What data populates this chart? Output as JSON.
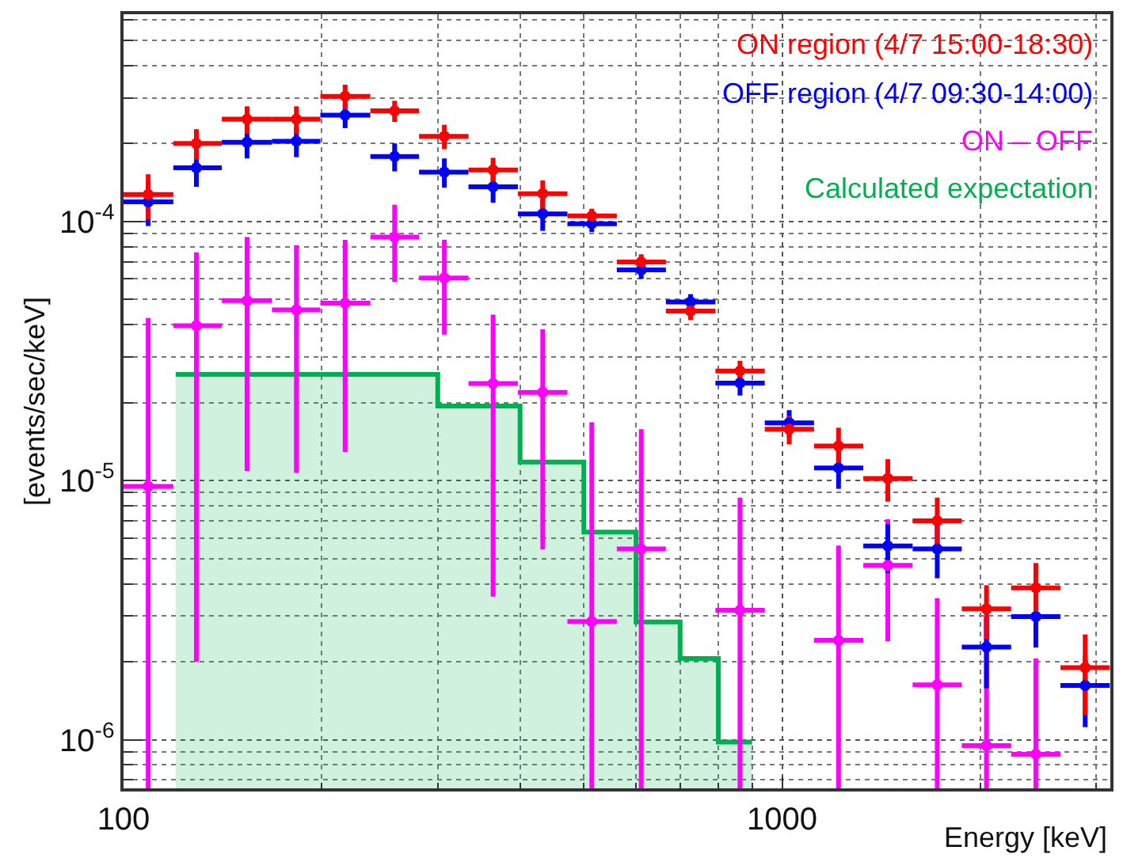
{
  "chart_data": {
    "type": "scatter",
    "xlabel": "Energy [keV]",
    "ylabel": "[events/sec/keV]",
    "log": "xy",
    "grid": true,
    "legend": "top right",
    "xlim": [
      100,
      3150
    ],
    "ylim": [
      6.5e-07,
      0.00063
    ],
    "xticks": [
      100,
      1000
    ],
    "yticks": [
      {
        "value": 1e-06,
        "label": "10$^{-6}$"
      },
      {
        "value": 1e-05,
        "label": "10$^{-5}$"
      },
      {
        "value": 0.0001,
        "label": "10$^{-4}$"
      }
    ],
    "series": [
      {
        "name": "ON region (4/7 15:00-18:30)",
        "color": "#ff0000",
        "x": [
          109,
          129,
          154,
          183,
          217,
          258,
          307,
          364,
          433,
          514,
          611,
          726,
          863,
          1025,
          1218,
          1447,
          1720,
          2043,
          2428,
          2885
        ],
        "values": [
          0.000127,
          0.0002,
          0.000248,
          0.000248,
          0.000304,
          0.000267,
          0.000213,
          0.000158,
          0.000128,
          0.000105,
          6.97e-05,
          4.51e-05,
          2.65e-05,
          1.58e-05,
          1.36e-05,
          1.02e-05,
          7e-06,
          3.2e-06,
          3.86e-06,
          1.9e-06
        ],
        "errors": [
          2.5e-05,
          2.7e-05,
          3e-05,
          3e-05,
          3.3e-05,
          2.5e-05,
          2.3e-05,
          1.8e-05,
          1.6e-05,
          7e-06,
          5e-06,
          3.5e-06,
          2.5e-06,
          2e-06,
          2.4e-06,
          1.9e-06,
          1.6e-06,
          7.5e-07,
          9.5e-07,
          6.5e-07
        ],
        "xerrors": [
          [
            100,
            119
          ],
          [
            119,
            141
          ],
          [
            141,
            168
          ],
          [
            168,
            199
          ],
          [
            199,
            237
          ],
          [
            237,
            281
          ],
          [
            281,
            334
          ],
          [
            334,
            397
          ],
          [
            397,
            472
          ],
          [
            472,
            561
          ],
          [
            561,
            666
          ],
          [
            666,
            792
          ],
          [
            792,
            941
          ],
          [
            941,
            1118
          ],
          [
            1118,
            1328
          ],
          [
            1328,
            1578
          ],
          [
            1578,
            1874
          ],
          [
            1874,
            2227
          ],
          [
            2227,
            2646
          ],
          [
            2646,
            3144
          ]
        ]
      },
      {
        "name": "OFF region (4/7 09:30-14:00)",
        "color": "#0000ff",
        "x": [
          109,
          129,
          154,
          183,
          217,
          258,
          307,
          364,
          433,
          514,
          611,
          726,
          863,
          1025,
          1218,
          1447,
          1720,
          2043,
          2428,
          2885
        ],
        "values": [
          0.000119,
          0.000161,
          0.000202,
          0.000204,
          0.000257,
          0.000178,
          0.000155,
          0.000136,
          0.000107,
          9.8e-05,
          6.5e-05,
          4.89e-05,
          2.38e-05,
          1.67e-05,
          1.12e-05,
          5.6e-06,
          5.45e-06,
          2.28e-06,
          2.99e-06,
          1.62e-06
        ],
        "errors": [
          2.3e-05,
          2.5e-05,
          2.7e-05,
          2.7e-05,
          2.8e-05,
          2.2e-05,
          2e-05,
          1.8e-05,
          1.5e-05,
          7e-06,
          5e-06,
          3.5e-06,
          2.5e-06,
          2e-06,
          1.9e-06,
          1.2e-06,
          1.25e-06,
          7e-07,
          7.2e-07,
          5e-07
        ],
        "xerrors": [
          [
            100,
            119
          ],
          [
            119,
            141
          ],
          [
            141,
            168
          ],
          [
            168,
            199
          ],
          [
            199,
            237
          ],
          [
            237,
            281
          ],
          [
            281,
            334
          ],
          [
            334,
            397
          ],
          [
            397,
            472
          ],
          [
            472,
            561
          ],
          [
            561,
            666
          ],
          [
            666,
            792
          ],
          [
            792,
            941
          ],
          [
            941,
            1118
          ],
          [
            1118,
            1328
          ],
          [
            1328,
            1578
          ],
          [
            1578,
            1874
          ],
          [
            1874,
            2227
          ],
          [
            2227,
            2646
          ],
          [
            2646,
            3144
          ]
        ]
      },
      {
        "name": "ON – OFF",
        "color": "#ff00ff",
        "x": [
          109,
          129,
          154,
          183,
          217,
          258,
          307,
          364,
          433,
          514,
          611,
          null,
          863,
          null,
          1218,
          1447,
          1720,
          2043,
          2428,
          null
        ],
        "values": [
          9.5e-06,
          3.96e-05,
          4.95e-05,
          4.56e-05,
          4.84e-05,
          8.7e-05,
          6.05e-05,
          2.37e-05,
          2.19e-05,
          2.86e-06,
          5.45e-06,
          null,
          3.16e-06,
          null,
          2.42e-06,
          4.71e-06,
          1.63e-06,
          9.5e-07,
          8.8e-07,
          null
        ],
        "errors": [
          [
            6.5e-07,
            4.24e-05
          ],
          [
            2e-06,
            7.6e-05
          ],
          [
            1.09e-05,
            8.7e-05
          ],
          [
            1.07e-05,
            8.1e-05
          ],
          [
            1.29e-05,
            8.5e-05
          ],
          [
            5.84e-05,
            0.000116
          ],
          [
            3.66e-05,
            8.5e-05
          ],
          [
            3.57e-06,
            4.37e-05
          ],
          [
            5.42e-06,
            3.84e-05
          ],
          [
            6.5e-07,
            1.68e-05
          ],
          [
            6.5e-07,
            1.58e-05
          ],
          null,
          [
            6.5e-07,
            8.6e-06
          ],
          null,
          [
            6.5e-07,
            5.62e-06
          ],
          [
            2.4e-06,
            7.1e-06
          ],
          [
            6.5e-07,
            3.52e-06
          ],
          [
            6.5e-07,
            3e-06
          ],
          [
            6.5e-07,
            2.06e-06
          ],
          null
        ],
        "xerrors": [
          [
            100,
            119
          ],
          [
            119,
            141
          ],
          [
            141,
            168
          ],
          [
            168,
            199
          ],
          [
            199,
            237
          ],
          [
            237,
            281
          ],
          [
            281,
            334
          ],
          [
            334,
            397
          ],
          [
            397,
            472
          ],
          [
            472,
            561
          ],
          [
            561,
            666
          ],
          null,
          [
            792,
            941
          ],
          null,
          [
            1118,
            1328
          ],
          [
            1328,
            1578
          ],
          [
            1578,
            1874
          ],
          [
            1874,
            2227
          ],
          [
            2227,
            2646
          ],
          null
        ]
      },
      {
        "name": "Calculated expectation",
        "color": "#00b050",
        "type": "area",
        "x": [
          120,
          300,
          300,
          400,
          400,
          500,
          500,
          600,
          600,
          700,
          700,
          800,
          800,
          900
        ],
        "values": [
          2.57e-05,
          2.57e-05,
          1.94e-05,
          1.94e-05,
          1.18e-05,
          1.18e-05,
          6.33e-06,
          6.33e-06,
          2.85e-06,
          2.85e-06,
          2.06e-06,
          2.06e-06,
          9.8e-07,
          9.8e-07
        ]
      }
    ]
  }
}
